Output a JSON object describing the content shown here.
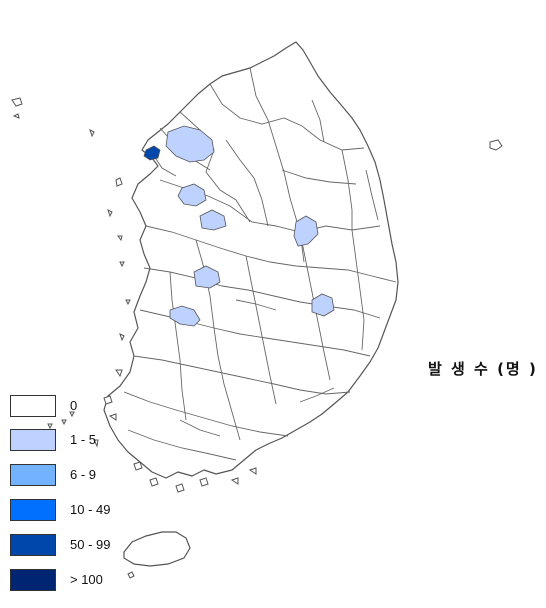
{
  "legend": {
    "title": "발 생 수 (명 )",
    "items": [
      {
        "label": "0",
        "color": "#ffffff"
      },
      {
        "label": "1 - 5",
        "color": "#bed2ff"
      },
      {
        "label": "6 - 9",
        "color": "#73b2ff"
      },
      {
        "label": "10 - 49",
        "color": "#0070ff"
      },
      {
        "label": "50 - 99",
        "color": "#0047ab"
      },
      {
        "label": "> 100",
        "color": "#002673"
      }
    ]
  },
  "regions": [
    {
      "name": "seoul-northwest",
      "category": "1 - 5"
    },
    {
      "name": "incheon",
      "category": "50 - 99"
    },
    {
      "name": "pyeongtaek-area",
      "category": "1 - 5"
    },
    {
      "name": "cheonan-area",
      "category": "1 - 5"
    },
    {
      "name": "chungju-area",
      "category": "1 - 5"
    },
    {
      "name": "sejong-area",
      "category": "1 - 5"
    },
    {
      "name": "nonsan-area",
      "category": "1 - 5"
    },
    {
      "name": "gumi-area",
      "category": "1 - 5"
    }
  ]
}
